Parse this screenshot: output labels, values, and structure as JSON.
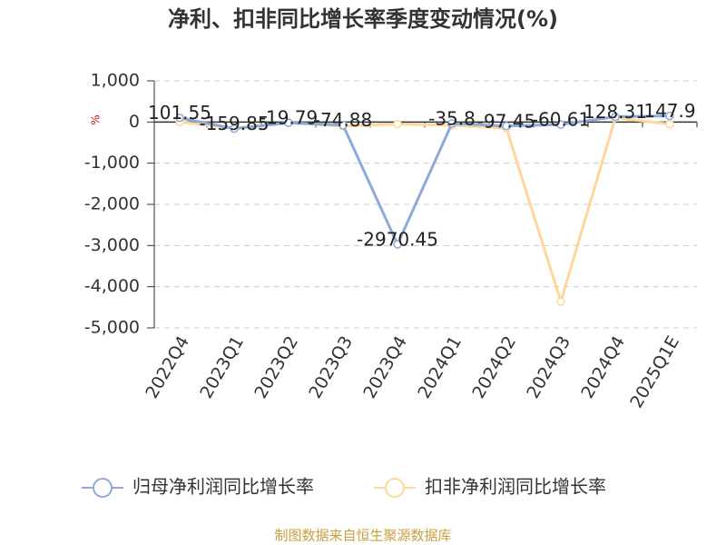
{
  "chart_data": {
    "type": "line",
    "title": "净利、扣非同比增长率季度变动情况(%)",
    "y_label": "%",
    "categories": [
      "2022Q4",
      "2023Q1",
      "2023Q2",
      "2023Q3",
      "2023Q4",
      "2024Q1",
      "2024Q2",
      "2024Q3",
      "2024Q4",
      "2025Q1E"
    ],
    "series": [
      {
        "name": "归母净利润同比增长率",
        "color": "#8eaadb",
        "values": [
          101.55,
          -159.85,
          -19.79,
          -74.88,
          -2970.45,
          -35.8,
          -97.45,
          -60.61,
          128.31,
          147.9
        ],
        "show_labels": true
      },
      {
        "name": "扣非净利润同比增长率",
        "color": "#fdd89a",
        "values": [
          0,
          -150,
          -20,
          -100,
          -50,
          -80,
          -150,
          -4360,
          100,
          -50
        ],
        "show_labels": false
      }
    ],
    "ylim": [
      -5000,
      1000
    ],
    "yticks": [
      {
        "value": 1000,
        "label": "1,000"
      },
      0,
      {
        "value": -1000,
        "label": "-1,000"
      },
      {
        "value": -2000,
        "label": "-2,000"
      },
      {
        "value": -3000,
        "label": "-3,000"
      },
      {
        "value": -4000,
        "label": "-4,000"
      },
      {
        "value": -5000,
        "label": "-5,000"
      }
    ],
    "grid": true,
    "legend": "bottom",
    "source": "制图数据来自恒生聚源数据库"
  }
}
